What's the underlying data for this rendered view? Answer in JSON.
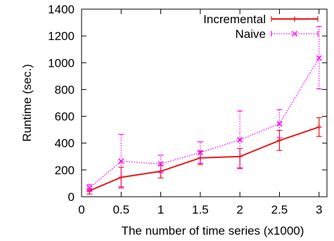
{
  "chart_data": {
    "type": "line",
    "title": "",
    "xlabel": "The number of time series (x1000)",
    "ylabel": "Runtime (sec.)",
    "xlim": [
      0,
      3.1
    ],
    "ylim": [
      0,
      1400
    ],
    "xticks": [
      0,
      0.5,
      1,
      1.5,
      2,
      2.5,
      3
    ],
    "xtick_labels": [
      "0",
      "0.5",
      "1",
      "1.5",
      "2",
      "2.5",
      "3"
    ],
    "yticks": [
      0,
      200,
      400,
      600,
      800,
      1000,
      1200,
      1400
    ],
    "ytick_labels": [
      "0",
      "200",
      "400",
      "600",
      "800",
      "1000",
      "1200",
      "1400"
    ],
    "grid": false,
    "legend_position": "top-right",
    "series": [
      {
        "name": "Incremental",
        "color": "#e41a1c",
        "line_style": "solid",
        "marker": "plus",
        "x": [
          0.1,
          0.5,
          1,
          1.5,
          2,
          2.5,
          3
        ],
        "y": [
          45,
          145,
          190,
          290,
          300,
          420,
          520
        ],
        "err_low": [
          20,
          75,
          140,
          240,
          215,
          345,
          450
        ],
        "err_high": [
          60,
          220,
          235,
          340,
          360,
          495,
          590
        ]
      },
      {
        "name": "Naive",
        "color": "#ff00ff",
        "line_style": "dotted",
        "marker": "x",
        "x": [
          0.1,
          0.5,
          1,
          1.5,
          2,
          2.5,
          3
        ],
        "y": [
          65,
          265,
          245,
          330,
          425,
          545,
          1035
        ],
        "err_low": [
          40,
          65,
          180,
          250,
          210,
          440,
          805
        ],
        "err_high": [
          90,
          465,
          310,
          410,
          640,
          650,
          1270
        ]
      }
    ]
  }
}
